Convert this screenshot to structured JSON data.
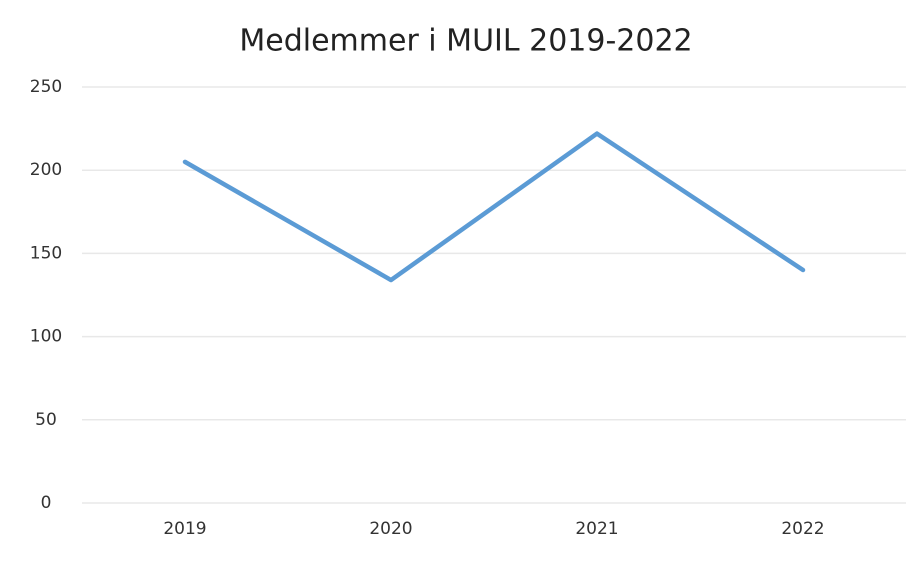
{
  "chart_data": {
    "type": "line",
    "title": "Medlemmer i MUIL 2019-2022",
    "categories": [
      "2019",
      "2020",
      "2021",
      "2022"
    ],
    "series": [
      {
        "name": "Medlemmer",
        "color": "#5b9bd5",
        "values": [
          205,
          134,
          222,
          140
        ]
      }
    ],
    "ylim": [
      0,
      250
    ],
    "yticks": [
      0,
      50,
      100,
      150,
      200,
      250
    ],
    "grid": true
  }
}
